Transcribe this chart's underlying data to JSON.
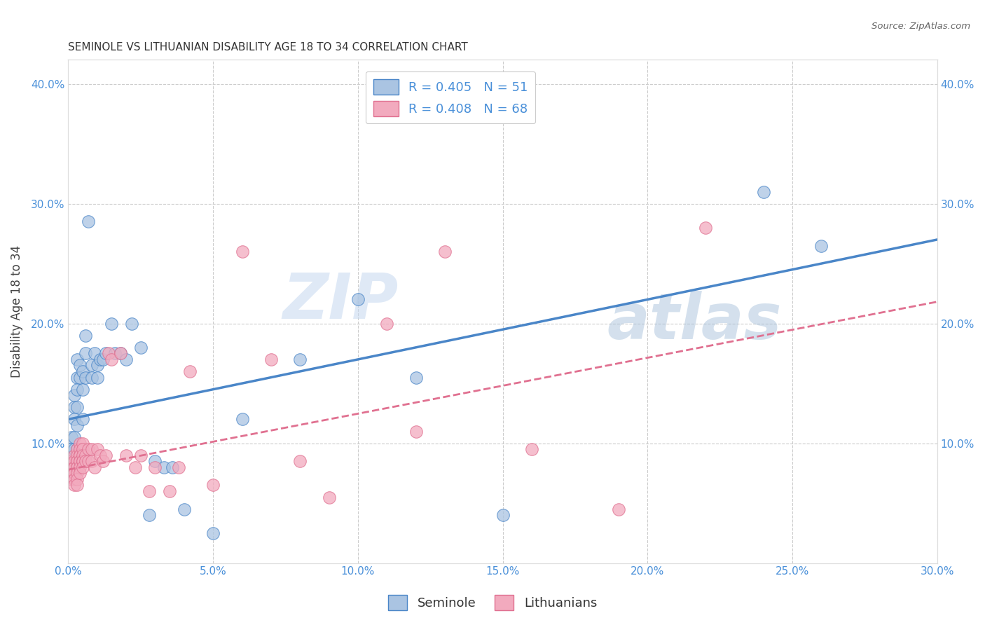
{
  "title": "SEMINOLE VS LITHUANIAN DISABILITY AGE 18 TO 34 CORRELATION CHART",
  "source": "Source: ZipAtlas.com",
  "ylabel_label": "Disability Age 18 to 34",
  "xlim": [
    0.0,
    0.3
  ],
  "ylim": [
    0.0,
    0.42
  ],
  "xticks": [
    0.0,
    0.05,
    0.1,
    0.15,
    0.2,
    0.25,
    0.3
  ],
  "yticks": [
    0.0,
    0.1,
    0.2,
    0.3,
    0.4
  ],
  "xtick_labels": [
    "0.0%",
    "5.0%",
    "10.0%",
    "15.0%",
    "20.0%",
    "25.0%",
    "30.0%"
  ],
  "ytick_labels": [
    "",
    "10.0%",
    "20.0%",
    "30.0%",
    "40.0%"
  ],
  "seminole_R": 0.405,
  "seminole_N": 51,
  "lithuanian_R": 0.408,
  "lithuanian_N": 68,
  "seminole_color": "#aac4e2",
  "lithuanian_color": "#f2aabe",
  "seminole_line_color": "#4a86c8",
  "lithuanian_line_color": "#e07090",
  "legend_label_seminole": "Seminole",
  "legend_label_lithuanian": "Lithuanians",
  "watermark_1": "ZIP",
  "watermark_2": "atlas",
  "background_color": "#ffffff",
  "grid_color": "#cccccc",
  "tick_color": "#4a90d9",
  "seminole_line_intercept": 0.12,
  "seminole_line_slope": 0.5,
  "lithuanian_line_intercept": 0.078,
  "lithuanian_line_slope": 0.467,
  "seminole_scatter_x": [
    0.001,
    0.001,
    0.001,
    0.002,
    0.002,
    0.002,
    0.002,
    0.002,
    0.003,
    0.003,
    0.003,
    0.003,
    0.003,
    0.003,
    0.004,
    0.004,
    0.004,
    0.005,
    0.005,
    0.005,
    0.006,
    0.006,
    0.006,
    0.007,
    0.008,
    0.008,
    0.009,
    0.01,
    0.01,
    0.011,
    0.012,
    0.013,
    0.015,
    0.016,
    0.018,
    0.02,
    0.022,
    0.025,
    0.028,
    0.03,
    0.033,
    0.036,
    0.04,
    0.05,
    0.06,
    0.08,
    0.1,
    0.12,
    0.15,
    0.24,
    0.26
  ],
  "seminole_scatter_y": [
    0.105,
    0.095,
    0.085,
    0.14,
    0.13,
    0.12,
    0.105,
    0.095,
    0.17,
    0.155,
    0.145,
    0.13,
    0.115,
    0.095,
    0.165,
    0.155,
    0.095,
    0.16,
    0.145,
    0.12,
    0.19,
    0.175,
    0.155,
    0.285,
    0.165,
    0.155,
    0.175,
    0.165,
    0.155,
    0.17,
    0.17,
    0.175,
    0.2,
    0.175,
    0.175,
    0.17,
    0.2,
    0.18,
    0.04,
    0.085,
    0.08,
    0.08,
    0.045,
    0.025,
    0.12,
    0.17,
    0.22,
    0.155,
    0.04,
    0.31,
    0.265
  ],
  "lithuanian_scatter_x": [
    0.001,
    0.001,
    0.001,
    0.001,
    0.002,
    0.002,
    0.002,
    0.002,
    0.002,
    0.002,
    0.002,
    0.002,
    0.003,
    0.003,
    0.003,
    0.003,
    0.003,
    0.003,
    0.003,
    0.003,
    0.003,
    0.004,
    0.004,
    0.004,
    0.004,
    0.004,
    0.004,
    0.004,
    0.004,
    0.005,
    0.005,
    0.005,
    0.005,
    0.005,
    0.005,
    0.006,
    0.006,
    0.007,
    0.007,
    0.008,
    0.008,
    0.009,
    0.01,
    0.011,
    0.012,
    0.013,
    0.014,
    0.015,
    0.018,
    0.02,
    0.023,
    0.025,
    0.028,
    0.03,
    0.035,
    0.038,
    0.042,
    0.05,
    0.06,
    0.07,
    0.08,
    0.09,
    0.11,
    0.12,
    0.13,
    0.16,
    0.19,
    0.22
  ],
  "lithuanian_scatter_y": [
    0.085,
    0.08,
    0.075,
    0.07,
    0.09,
    0.085,
    0.08,
    0.08,
    0.075,
    0.075,
    0.07,
    0.065,
    0.095,
    0.09,
    0.085,
    0.085,
    0.08,
    0.08,
    0.075,
    0.07,
    0.065,
    0.1,
    0.095,
    0.09,
    0.09,
    0.085,
    0.085,
    0.08,
    0.075,
    0.1,
    0.095,
    0.09,
    0.085,
    0.085,
    0.08,
    0.09,
    0.085,
    0.095,
    0.085,
    0.095,
    0.085,
    0.08,
    0.095,
    0.09,
    0.085,
    0.09,
    0.175,
    0.17,
    0.175,
    0.09,
    0.08,
    0.09,
    0.06,
    0.08,
    0.06,
    0.08,
    0.16,
    0.065,
    0.26,
    0.17,
    0.085,
    0.055,
    0.2,
    0.11,
    0.26,
    0.095,
    0.045,
    0.28
  ]
}
